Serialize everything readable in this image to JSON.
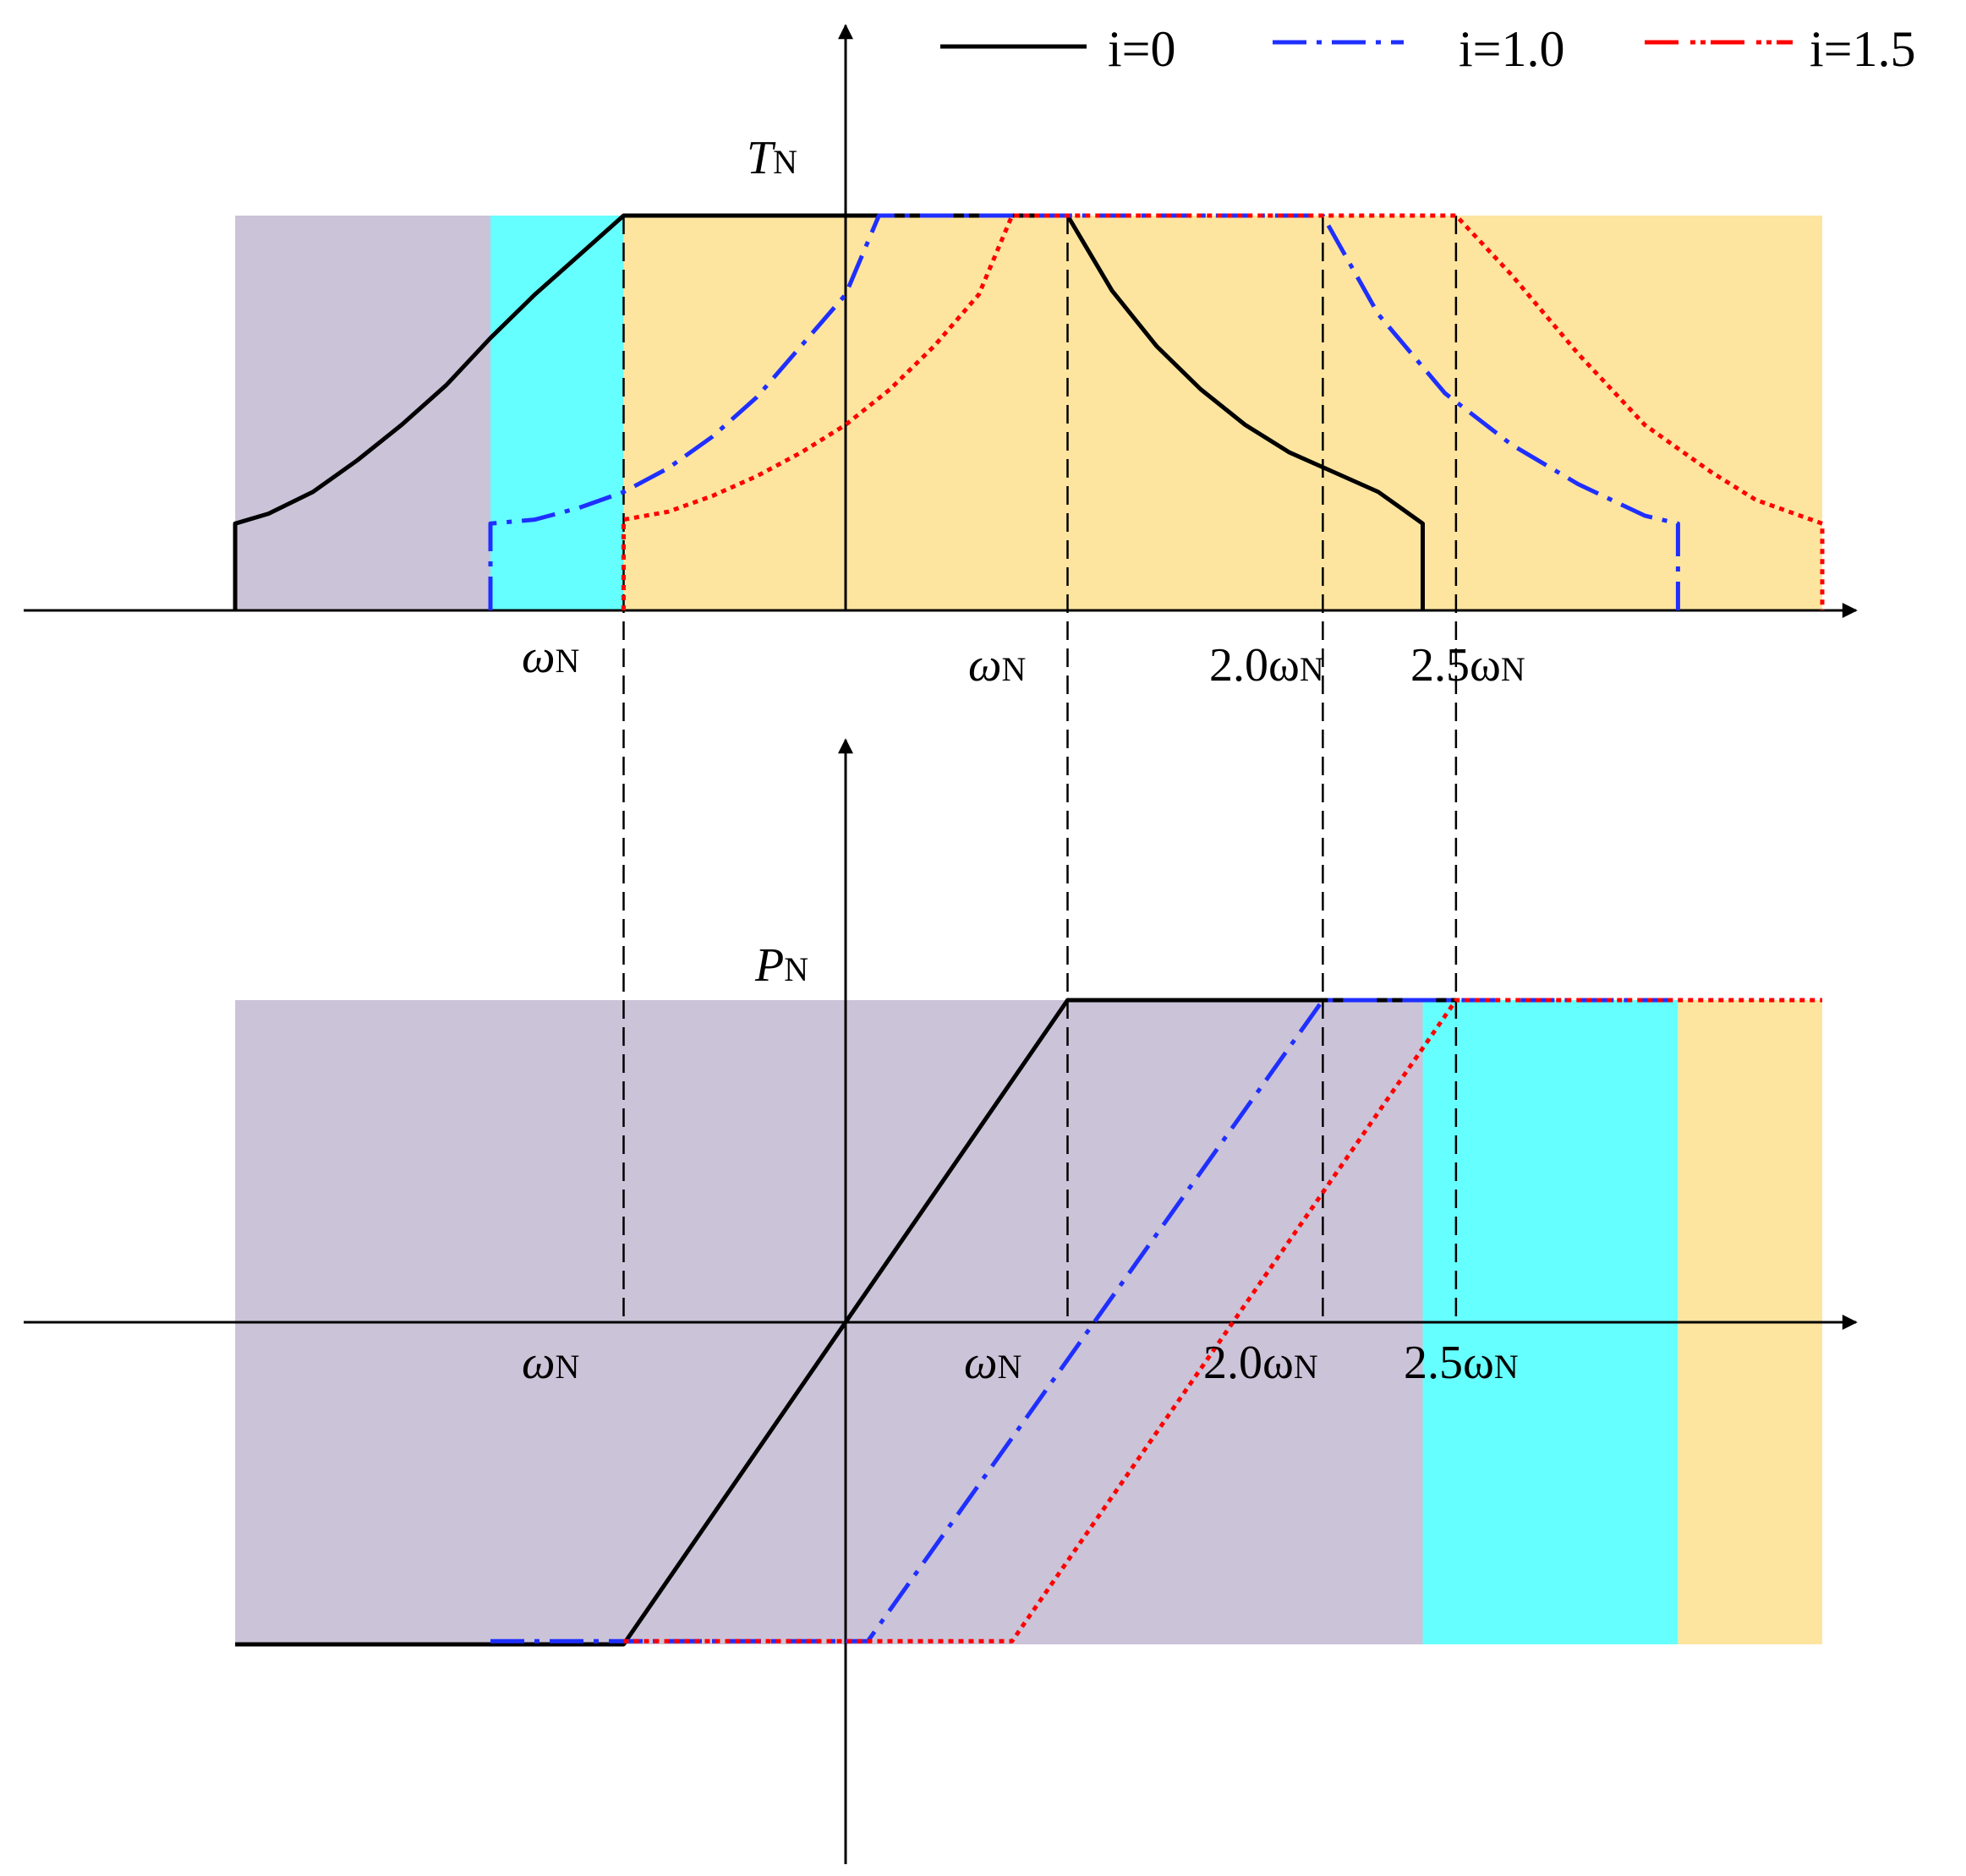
{
  "legend": {
    "items": [
      {
        "label": "i=0",
        "color": "#000000",
        "style": "solid"
      },
      {
        "label": "i=1.0",
        "color": "#1f2fff",
        "style": "dashdot"
      },
      {
        "label": "i=1.5",
        "color": "#ff0000",
        "style": "dotted"
      }
    ]
  },
  "top_panel": {
    "y_symbol": "T",
    "y_subscript": "N",
    "tick_labels": [
      {
        "text": "ω",
        "sub": "N"
      },
      {
        "text": "ω",
        "sub": "N"
      },
      {
        "text": "2.0ω",
        "sub": "N"
      },
      {
        "text": "2.5ω",
        "sub": "N"
      }
    ]
  },
  "bottom_panel": {
    "y_symbol": "P",
    "y_subscript": "N",
    "tick_labels": [
      {
        "text": "ω",
        "sub": "N"
      },
      {
        "text": "ω",
        "sub": "N"
      },
      {
        "text": "2.0ω",
        "sub": "N"
      },
      {
        "text": "2.5ω",
        "sub": "N"
      }
    ]
  },
  "colors": {
    "purple_region": "#cbc3d8",
    "cyan_region": "#66ffff",
    "yellow_region": "#fde59f",
    "i0": "#000000",
    "i10": "#1f2fff",
    "i15": "#ff0000"
  },
  "chart_data": [
    {
      "type": "line",
      "panel": "top",
      "description_units": "x in units of rated speed, y in units of rated torque/power",
      "x_markers": [
        -1.0,
        1.0,
        2.15,
        2.75
      ],
      "xlim": [
        -2.75,
        4.4
      ],
      "ylim": [
        0,
        1
      ],
      "regions": [
        {
          "color": "purple",
          "x": [
            -2.75,
            -1.6
          ]
        },
        {
          "color": "cyan",
          "x": [
            -1.6,
            -1.0
          ]
        },
        {
          "color": "yellow",
          "x": [
            -1.0,
            4.4
          ]
        }
      ],
      "series": [
        {
          "name": "i=0",
          "points": [
            [
              -2.75,
              0
            ],
            [
              -2.75,
              0.22
            ],
            [
              -2.6,
              0.245
            ],
            [
              -2.4,
              0.3
            ],
            [
              -2.2,
              0.38
            ],
            [
              -2.0,
              0.47
            ],
            [
              -1.8,
              0.57
            ],
            [
              -1.6,
              0.69
            ],
            [
              -1.4,
              0.8
            ],
            [
              -1.2,
              0.9
            ],
            [
              -1.0,
              1.0
            ],
            [
              1.0,
              1.0
            ],
            [
              1.2,
              0.81
            ],
            [
              1.4,
              0.67
            ],
            [
              1.6,
              0.56
            ],
            [
              1.8,
              0.47
            ],
            [
              2.0,
              0.4
            ],
            [
              2.2,
              0.35
            ],
            [
              2.4,
              0.3
            ],
            [
              2.6,
              0.22
            ],
            [
              2.6,
              0
            ]
          ]
        },
        {
          "name": "i=1.0",
          "points": [
            [
              -1.6,
              0
            ],
            [
              -1.6,
              0.22
            ],
            [
              -1.4,
              0.23
            ],
            [
              -1.2,
              0.26
            ],
            [
              -1.0,
              0.3
            ],
            [
              -0.8,
              0.36
            ],
            [
              -0.6,
              0.44
            ],
            [
              -0.4,
              0.54
            ],
            [
              -0.2,
              0.67
            ],
            [
              0,
              0.8
            ],
            [
              0.15,
              1.0
            ],
            [
              2.15,
              1.0
            ],
            [
              2.4,
              0.75
            ],
            [
              2.7,
              0.55
            ],
            [
              3.0,
              0.42
            ],
            [
              3.3,
              0.32
            ],
            [
              3.6,
              0.24
            ],
            [
              3.75,
              0.22
            ],
            [
              3.75,
              0
            ]
          ]
        },
        {
          "name": "i=1.5",
          "points": [
            [
              -1.0,
              0
            ],
            [
              -1.0,
              0.23
            ],
            [
              -0.8,
              0.25
            ],
            [
              -0.6,
              0.29
            ],
            [
              -0.4,
              0.34
            ],
            [
              -0.2,
              0.4
            ],
            [
              0,
              0.47
            ],
            [
              0.2,
              0.56
            ],
            [
              0.4,
              0.67
            ],
            [
              0.6,
              0.8
            ],
            [
              0.75,
              1.0
            ],
            [
              2.75,
              1.0
            ],
            [
              3.0,
              0.85
            ],
            [
              3.3,
              0.65
            ],
            [
              3.6,
              0.47
            ],
            [
              3.9,
              0.35
            ],
            [
              4.1,
              0.28
            ],
            [
              4.4,
              0.22
            ],
            [
              4.4,
              0
            ]
          ]
        }
      ]
    },
    {
      "type": "line",
      "panel": "bottom",
      "x_markers": [
        -1.0,
        1.0,
        2.15,
        2.75
      ],
      "xlim": [
        -2.75,
        4.4
      ],
      "ylim": [
        -1,
        1
      ],
      "regions": [
        {
          "color": "purple",
          "x": [
            -2.75,
            2.6
          ]
        },
        {
          "color": "cyan",
          "x": [
            2.6,
            3.75
          ]
        },
        {
          "color": "yellow",
          "x": [
            3.75,
            4.4
          ]
        }
      ],
      "series": [
        {
          "name": "i=0",
          "points": [
            [
              -2.75,
              -1.0
            ],
            [
              -1.0,
              -1.0
            ],
            [
              1.0,
              1.0
            ],
            [
              2.75,
              1.0
            ]
          ]
        },
        {
          "name": "i=1.0",
          "points": [
            [
              -1.6,
              -0.99
            ],
            [
              0.1,
              -0.99
            ],
            [
              2.15,
              1.0
            ],
            [
              3.75,
              1.0
            ]
          ]
        },
        {
          "name": "i=1.5",
          "points": [
            [
              -1.0,
              -0.99
            ],
            [
              0.75,
              -0.99
            ],
            [
              2.75,
              1.0
            ],
            [
              4.4,
              1.0
            ]
          ]
        }
      ]
    }
  ]
}
